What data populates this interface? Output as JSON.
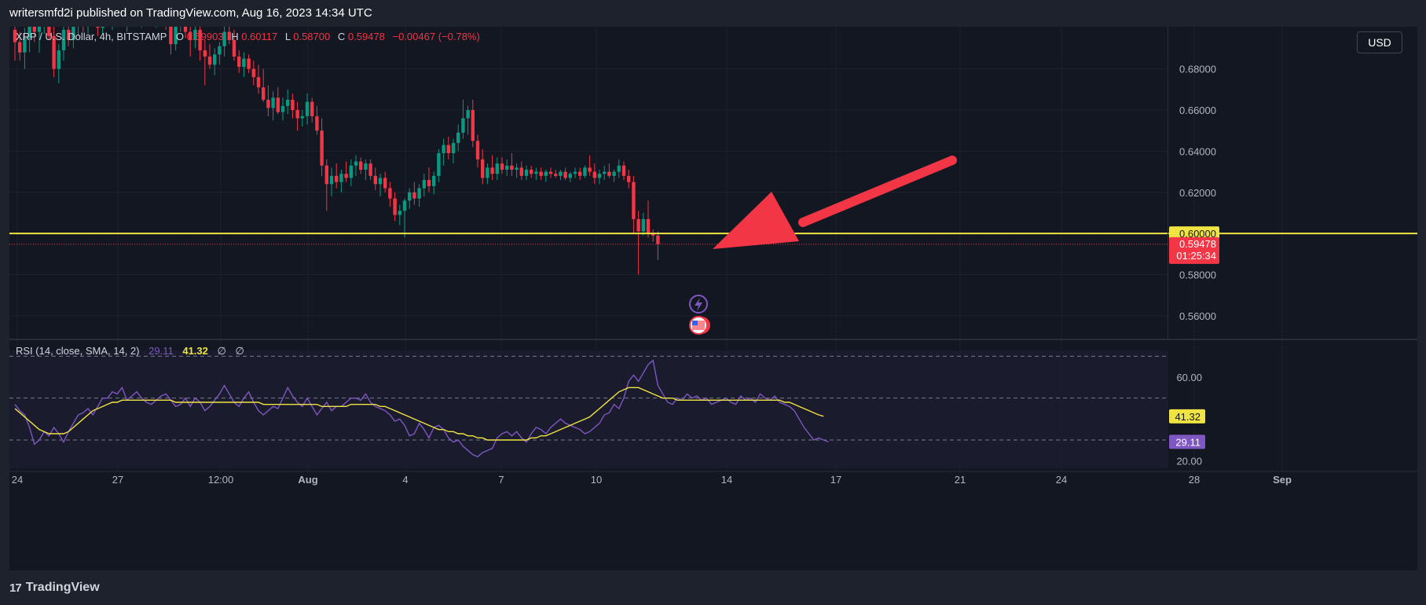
{
  "header": {
    "publisher_line": "writersmfd2i published on TradingView.com, Aug 16, 2023 14:34 UTC"
  },
  "legend": {
    "symbol": "XRP / U.S. Dollar, 4h, BITSTAMP",
    "o_label": "O",
    "o_value": "0.59903",
    "h_label": "H",
    "h_value": "0.60117",
    "l_label": "L",
    "l_value": "0.58700",
    "c_label": "C",
    "c_value": "0.59478",
    "change": "−0.00467 (−0.78%)"
  },
  "rsi_legend": {
    "title": "RSI (14, close, SMA, 14, 2)",
    "rsi_value": "29.11",
    "ma_value": "41.32",
    "extra1": "∅",
    "extra2": "∅"
  },
  "currency_button": "USD",
  "footer": {
    "brand": "TradingView"
  },
  "colors": {
    "up": "#089981",
    "down": "#f23645",
    "level_line": "#f0e442",
    "rsi_line": "#7e57c2",
    "rsi_ma": "#f0e442",
    "arrow": "#f23645",
    "background": "#131722"
  },
  "chart_data": [
    {
      "type": "candlestick",
      "symbol": "XRP / U.S. Dollar",
      "interval": "4h",
      "exchange": "BITSTAMP",
      "price_axis": {
        "ticks": [
          "0.68000",
          "0.66000",
          "0.64000",
          "0.62000",
          "0.60000",
          "0.58000",
          "0.56000"
        ],
        "visible_range": [
          0.5485,
          0.7005
        ]
      },
      "time_axis": {
        "ticks": [
          "24",
          "27",
          "12:00",
          "Aug",
          "4",
          "7",
          "10",
          "14",
          "17",
          "21",
          "24",
          "28",
          "Sep"
        ],
        "bold_ticks": [
          "Aug",
          "Sep"
        ]
      },
      "horizontal_level": {
        "value": 0.6,
        "label": "0.60000"
      },
      "last_price": {
        "value": 0.59478,
        "label": "0.59478",
        "countdown": "01:25:34"
      },
      "annotation": "arrow pointing to price near 0.600 support",
      "event_icons": [
        "lightning-icon",
        "us-flag-icon"
      ],
      "candles": [
        [
          0.699,
          0.712,
          0.684,
          0.693
        ],
        [
          0.693,
          0.698,
          0.684,
          0.688
        ],
        [
          0.688,
          0.7,
          0.68,
          0.695
        ],
        [
          0.695,
          0.704,
          0.688,
          0.701
        ],
        [
          0.701,
          0.714,
          0.693,
          0.698
        ],
        [
          0.698,
          0.708,
          0.688,
          0.705
        ],
        [
          0.705,
          0.716,
          0.697,
          0.71
        ],
        [
          0.71,
          0.712,
          0.694,
          0.696
        ],
        [
          0.696,
          0.701,
          0.676,
          0.68
        ],
        [
          0.68,
          0.692,
          0.673,
          0.689
        ],
        [
          0.689,
          0.702,
          0.684,
          0.699
        ],
        [
          0.699,
          0.708,
          0.691,
          0.694
        ],
        [
          0.694,
          0.704,
          0.69,
          0.701
        ],
        [
          0.701,
          0.712,
          0.696,
          0.708
        ],
        [
          0.708,
          0.711,
          0.698,
          0.703
        ],
        [
          0.703,
          0.71,
          0.697,
          0.707
        ],
        [
          0.707,
          0.714,
          0.701,
          0.704
        ],
        [
          0.704,
          0.708,
          0.696,
          0.7
        ],
        [
          0.7,
          0.712,
          0.697,
          0.709
        ],
        [
          0.709,
          0.716,
          0.702,
          0.706
        ],
        [
          0.706,
          0.711,
          0.699,
          0.708
        ],
        [
          0.708,
          0.715,
          0.703,
          0.711
        ],
        [
          0.711,
          0.713,
          0.702,
          0.704
        ],
        [
          0.704,
          0.71,
          0.698,
          0.707
        ],
        [
          0.707,
          0.716,
          0.703,
          0.712
        ],
        [
          0.712,
          0.714,
          0.704,
          0.706
        ],
        [
          0.706,
          0.713,
          0.7,
          0.709
        ],
        [
          0.709,
          0.716,
          0.705,
          0.713
        ],
        [
          0.713,
          0.715,
          0.703,
          0.707
        ],
        [
          0.707,
          0.712,
          0.7,
          0.71
        ],
        [
          0.71,
          0.717,
          0.705,
          0.713
        ],
        [
          0.713,
          0.716,
          0.699,
          0.701
        ],
        [
          0.701,
          0.706,
          0.687,
          0.692
        ],
        [
          0.692,
          0.704,
          0.689,
          0.702
        ],
        [
          0.702,
          0.71,
          0.698,
          0.707
        ],
        [
          0.707,
          0.712,
          0.695,
          0.698
        ],
        [
          0.698,
          0.705,
          0.686,
          0.694
        ],
        [
          0.694,
          0.702,
          0.69,
          0.699
        ],
        [
          0.699,
          0.703,
          0.684,
          0.689
        ],
        [
          0.689,
          0.694,
          0.672,
          0.686
        ],
        [
          0.686,
          0.692,
          0.68,
          0.682
        ],
        [
          0.682,
          0.69,
          0.677,
          0.687
        ],
        [
          0.687,
          0.693,
          0.682,
          0.691
        ],
        [
          0.691,
          0.701,
          0.686,
          0.698
        ],
        [
          0.698,
          0.705,
          0.692,
          0.694
        ],
        [
          0.694,
          0.699,
          0.684,
          0.686
        ],
        [
          0.686,
          0.689,
          0.678,
          0.681
        ],
        [
          0.681,
          0.688,
          0.676,
          0.685
        ],
        [
          0.685,
          0.687,
          0.678,
          0.68
        ],
        [
          0.68,
          0.684,
          0.672,
          0.676
        ],
        [
          0.676,
          0.682,
          0.668,
          0.671
        ],
        [
          0.671,
          0.68,
          0.664,
          0.665
        ],
        [
          0.665,
          0.672,
          0.657,
          0.661
        ],
        [
          0.661,
          0.669,
          0.655,
          0.666
        ],
        [
          0.666,
          0.671,
          0.658,
          0.659
        ],
        [
          0.659,
          0.666,
          0.655,
          0.662
        ],
        [
          0.662,
          0.67,
          0.658,
          0.665
        ],
        [
          0.665,
          0.668,
          0.656,
          0.66
        ],
        [
          0.66,
          0.664,
          0.65,
          0.656
        ],
        [
          0.656,
          0.66,
          0.652,
          0.657
        ],
        [
          0.657,
          0.668,
          0.653,
          0.664
        ],
        [
          0.664,
          0.666,
          0.654,
          0.657
        ],
        [
          0.657,
          0.662,
          0.648,
          0.65
        ],
        [
          0.65,
          0.656,
          0.628,
          0.633
        ],
        [
          0.633,
          0.636,
          0.611,
          0.624
        ],
        [
          0.624,
          0.632,
          0.618,
          0.628
        ],
        [
          0.628,
          0.634,
          0.622,
          0.625
        ],
        [
          0.625,
          0.631,
          0.62,
          0.629
        ],
        [
          0.629,
          0.635,
          0.625,
          0.627
        ],
        [
          0.627,
          0.636,
          0.623,
          0.633
        ],
        [
          0.633,
          0.638,
          0.628,
          0.635
        ],
        [
          0.635,
          0.637,
          0.629,
          0.631
        ],
        [
          0.631,
          0.636,
          0.626,
          0.634
        ],
        [
          0.634,
          0.636,
          0.626,
          0.628
        ],
        [
          0.628,
          0.632,
          0.621,
          0.624
        ],
        [
          0.624,
          0.629,
          0.618,
          0.627
        ],
        [
          0.627,
          0.63,
          0.62,
          0.622
        ],
        [
          0.622,
          0.625,
          0.613,
          0.617
        ],
        [
          0.617,
          0.62,
          0.606,
          0.609
        ],
        [
          0.609,
          0.614,
          0.604,
          0.611
        ],
        [
          0.611,
          0.617,
          0.598,
          0.616
        ],
        [
          0.616,
          0.622,
          0.612,
          0.62
        ],
        [
          0.62,
          0.625,
          0.614,
          0.617
        ],
        [
          0.617,
          0.624,
          0.613,
          0.622
        ],
        [
          0.622,
          0.629,
          0.618,
          0.626
        ],
        [
          0.626,
          0.632,
          0.62,
          0.623
        ],
        [
          0.623,
          0.63,
          0.619,
          0.628
        ],
        [
          0.628,
          0.641,
          0.625,
          0.639
        ],
        [
          0.639,
          0.646,
          0.633,
          0.643
        ],
        [
          0.643,
          0.647,
          0.636,
          0.639
        ],
        [
          0.639,
          0.646,
          0.634,
          0.644
        ],
        [
          0.644,
          0.653,
          0.64,
          0.649
        ],
        [
          0.649,
          0.665,
          0.646,
          0.656
        ],
        [
          0.656,
          0.662,
          0.648,
          0.66
        ],
        [
          0.66,
          0.665,
          0.642,
          0.645
        ],
        [
          0.645,
          0.648,
          0.632,
          0.636
        ],
        [
          0.636,
          0.641,
          0.624,
          0.627
        ],
        [
          0.627,
          0.634,
          0.624,
          0.632
        ],
        [
          0.632,
          0.638,
          0.626,
          0.629
        ],
        [
          0.629,
          0.637,
          0.626,
          0.634
        ],
        [
          0.634,
          0.637,
          0.629,
          0.631
        ],
        [
          0.631,
          0.636,
          0.628,
          0.633
        ],
        [
          0.633,
          0.639,
          0.628,
          0.631
        ],
        [
          0.631,
          0.634,
          0.627,
          0.632
        ],
        [
          0.632,
          0.635,
          0.626,
          0.628
        ],
        [
          0.628,
          0.633,
          0.626,
          0.631
        ],
        [
          0.631,
          0.633,
          0.627,
          0.629
        ],
        [
          0.629,
          0.632,
          0.626,
          0.63
        ],
        [
          0.63,
          0.632,
          0.626,
          0.628
        ],
        [
          0.628,
          0.631,
          0.625,
          0.63
        ],
        [
          0.63,
          0.632,
          0.627,
          0.629
        ],
        [
          0.629,
          0.631,
          0.627,
          0.628
        ],
        [
          0.628,
          0.631,
          0.626,
          0.63
        ],
        [
          0.63,
          0.632,
          0.626,
          0.627
        ],
        [
          0.627,
          0.63,
          0.625,
          0.629
        ],
        [
          0.629,
          0.632,
          0.627,
          0.63
        ],
        [
          0.63,
          0.632,
          0.626,
          0.628
        ],
        [
          0.628,
          0.633,
          0.627,
          0.632
        ],
        [
          0.632,
          0.638,
          0.628,
          0.63
        ],
        [
          0.63,
          0.634,
          0.624,
          0.627
        ],
        [
          0.627,
          0.631,
          0.624,
          0.629
        ],
        [
          0.629,
          0.633,
          0.626,
          0.63
        ],
        [
          0.63,
          0.634,
          0.627,
          0.628
        ],
        [
          0.628,
          0.631,
          0.625,
          0.63
        ],
        [
          0.63,
          0.636,
          0.627,
          0.633
        ],
        [
          0.633,
          0.635,
          0.626,
          0.628
        ],
        [
          0.628,
          0.631,
          0.622,
          0.625
        ],
        [
          0.625,
          0.628,
          0.6,
          0.607
        ],
        [
          0.607,
          0.611,
          0.58,
          0.601
        ],
        [
          0.601,
          0.61,
          0.599,
          0.607
        ],
        [
          0.607,
          0.616,
          0.598,
          0.6
        ],
        [
          0.6,
          0.602,
          0.596,
          0.599
        ],
        [
          0.599,
          0.601,
          0.587,
          0.5948
        ]
      ]
    },
    {
      "type": "line",
      "title": "RSI (14, close, SMA, 14, 2)",
      "y_axis_ticks": [
        "60.00",
        "20.00"
      ],
      "bands": [
        70,
        50,
        30
      ],
      "visible_range": [
        15,
        75
      ],
      "series": [
        {
          "name": "RSI",
          "values": [
            47,
            44,
            42,
            36,
            28,
            30,
            34,
            32,
            36,
            33,
            29,
            34,
            38,
            42,
            43,
            45,
            42,
            46,
            50,
            50,
            53,
            52,
            55,
            49,
            51,
            53,
            50,
            48,
            47,
            49,
            51,
            52,
            49,
            46,
            47,
            50,
            46,
            50,
            48,
            44,
            46,
            49,
            52,
            56,
            52,
            48,
            46,
            50,
            53,
            48,
            44,
            42,
            44,
            46,
            45,
            50,
            55,
            51,
            48,
            46,
            50,
            46,
            42,
            45,
            48,
            44,
            46,
            46,
            48,
            50,
            50,
            49,
            52,
            48,
            46,
            45,
            44,
            42,
            39,
            40,
            37,
            32,
            33,
            38,
            35,
            31,
            36,
            37,
            35,
            31,
            29,
            30,
            27,
            25,
            23,
            22,
            24,
            25,
            26,
            31,
            33,
            34,
            32,
            34,
            31,
            29,
            33,
            36,
            35,
            33,
            36,
            38,
            40,
            38,
            37,
            36,
            35,
            33,
            34,
            36,
            38,
            42,
            43,
            47,
            45,
            50,
            58,
            61,
            58,
            62,
            66,
            68,
            56,
            52,
            48,
            47,
            50,
            49,
            52,
            50,
            51,
            49,
            50,
            47,
            48,
            49,
            50,
            48,
            47,
            51,
            49,
            50,
            48,
            52,
            50,
            49,
            51,
            48,
            47,
            46,
            44,
            40,
            36,
            33,
            30,
            31,
            30,
            29.11
          ],
          "color": "#7e57c2"
        },
        {
          "name": "RSI-based MA",
          "values": [
            45,
            43,
            41,
            39,
            37,
            35,
            34,
            33,
            33,
            33,
            33,
            34,
            36,
            38,
            40,
            42,
            44,
            45,
            46,
            47,
            48,
            48,
            49,
            49,
            49,
            49,
            49,
            49,
            49,
            49,
            49,
            49,
            49,
            48,
            48,
            48,
            48,
            48,
            48,
            48,
            48,
            48,
            48,
            48,
            48,
            48,
            48,
            48,
            48,
            48,
            48,
            47,
            47,
            47,
            47,
            47,
            47,
            47,
            47,
            47,
            47,
            47,
            47,
            46,
            46,
            46,
            46,
            46,
            46,
            47,
            47,
            47,
            47,
            47,
            47,
            46,
            46,
            45,
            44,
            43,
            42,
            41,
            40,
            39,
            38,
            37,
            36,
            35,
            35,
            34,
            34,
            33,
            33,
            32,
            32,
            31,
            31,
            30,
            30,
            30,
            30,
            30,
            30,
            30,
            30,
            30,
            31,
            31,
            32,
            32,
            33,
            34,
            35,
            36,
            37,
            38,
            39,
            40,
            41,
            43,
            45,
            47,
            49,
            51,
            53,
            54,
            55,
            55,
            55,
            54,
            53,
            52,
            51,
            50,
            50,
            50,
            49,
            49,
            49,
            49,
            49,
            49,
            49,
            49,
            49,
            49,
            49,
            49,
            49,
            49,
            49,
            49,
            49,
            49,
            49,
            49,
            49,
            49,
            48,
            48,
            47,
            46,
            45,
            44,
            43,
            42,
            41.32
          ],
          "color": "#f0e442"
        }
      ],
      "last_values": {
        "rsi": "29.11",
        "ma": "41.32"
      }
    }
  ]
}
